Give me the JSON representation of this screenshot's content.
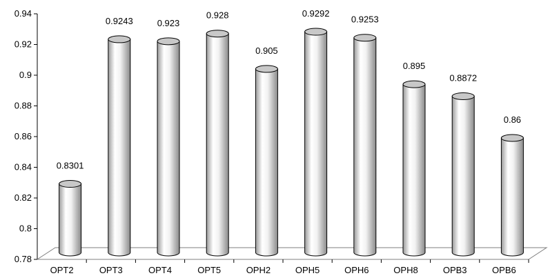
{
  "chart_data": {
    "type": "bar",
    "title": "",
    "xlabel": "",
    "ylabel": "",
    "categories": [
      "OPT2",
      "OPT3",
      "OPT4",
      "OPT5",
      "OPH2",
      "OPH5",
      "OPH6",
      "OPH8",
      "OPB3",
      "OPB6"
    ],
    "values": [
      0.8301,
      0.9243,
      0.923,
      0.928,
      0.905,
      0.9292,
      0.9253,
      0.895,
      0.8872,
      0.86
    ],
    "value_labels": [
      "0.8301",
      "0.9243",
      "0.923",
      "0.928",
      "0.905",
      "0.9292",
      "0.9253",
      "0.895",
      "0.8872",
      "0.86"
    ],
    "ylim": [
      0.78,
      0.94
    ],
    "yticks": [
      "0.78",
      "0.8",
      "0.82",
      "0.84",
      "0.86",
      "0.88",
      "0.9",
      "0.92",
      "0.94"
    ],
    "grid": false,
    "legend": "none",
    "bar_style": "3d-cylinder",
    "colors": {
      "bar_light": "#ffffff",
      "bar_dark": "#8a8a8a",
      "bar_top": "#c8c8c8",
      "axis": "#000000"
    }
  }
}
